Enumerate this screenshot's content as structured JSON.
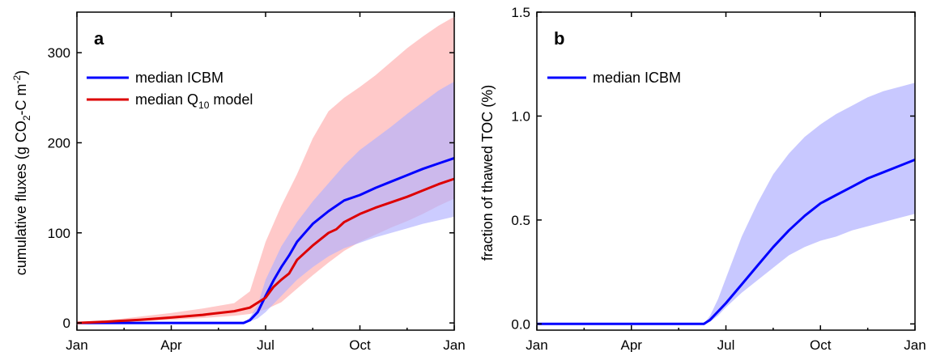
{
  "chart_data": [
    {
      "panel": "a",
      "type": "line",
      "x_ticks": [
        "Jan",
        "Apr",
        "Jul",
        "Oct",
        "Jan"
      ],
      "x_tick_positions": [
        0,
        3,
        6,
        9,
        12
      ],
      "xlim": [
        0,
        12
      ],
      "ylim": [
        -8,
        345
      ],
      "y_ticks": [
        0,
        100,
        200,
        300
      ],
      "ylabel": {
        "main": "cumulative fluxes (g CO",
        "sub": "2",
        "mid": "-C m",
        "sup": "-2",
        "end": ")"
      },
      "legend": [
        {
          "text": "median ICBM",
          "color": "#0000ff"
        },
        {
          "text_main": "median Q",
          "text_sub": "10",
          "text_end": " model",
          "color": "#dd0000"
        }
      ],
      "series": [
        {
          "name": "median ICBM",
          "color": "#0000ff",
          "x": [
            0,
            5.3,
            5.5,
            5.75,
            6.0,
            6.25,
            6.5,
            6.75,
            7.0,
            7.5,
            8.0,
            8.5,
            9.0,
            9.5,
            10,
            10.5,
            11,
            11.5,
            12
          ],
          "y": [
            0,
            0,
            3,
            12,
            30,
            47,
            62,
            75,
            90,
            110,
            124,
            136,
            142,
            150,
            157,
            164,
            171,
            177,
            183
          ]
        },
        {
          "name": "median Q10 model",
          "color": "#dd0000",
          "x": [
            0,
            1,
            2,
            3,
            4,
            5,
            5.5,
            6.0,
            6.25,
            6.5,
            6.75,
            7.0,
            7.5,
            8.0,
            8.25,
            8.5,
            9.0,
            9.5,
            10,
            10.5,
            11,
            11.5,
            12
          ],
          "y": [
            0,
            1.5,
            3.5,
            6,
            9,
            13,
            17,
            28,
            40,
            48,
            55,
            70,
            86,
            100,
            104,
            112,
            121,
            128,
            134,
            140,
            147,
            154,
            160
          ]
        }
      ],
      "bands": [
        {
          "series": "median Q10 model",
          "fill": "#ffb0b0",
          "opacity": 0.68,
          "x": [
            0,
            1,
            2,
            3,
            4,
            5,
            5.5,
            6,
            6.5,
            7,
            7.5,
            8,
            8.5,
            9,
            9.5,
            10,
            10.5,
            11,
            11.5,
            12
          ],
          "lower": [
            0,
            0.8,
            2,
            3.5,
            5.5,
            8,
            10,
            15,
            23,
            38,
            53,
            67,
            80,
            90,
            98,
            106,
            113,
            121,
            130,
            138
          ],
          "upper": [
            0,
            3,
            7,
            11,
            16,
            22,
            35,
            90,
            130,
            165,
            205,
            235,
            250,
            262,
            275,
            290,
            305,
            318,
            330,
            340
          ]
        },
        {
          "series": "median ICBM",
          "fill": "#b0b0ff",
          "opacity": 0.65,
          "x": [
            0,
            5.3,
            5.5,
            5.75,
            6,
            6.5,
            7,
            7.5,
            8,
            8.5,
            9,
            9.5,
            10,
            10.5,
            11,
            11.5,
            12
          ],
          "lower": [
            0,
            0,
            1.5,
            5,
            12,
            30,
            48,
            62,
            74,
            83,
            89,
            95,
            100,
            105,
            110,
            114,
            118
          ],
          "upper": [
            0,
            0,
            6,
            20,
            48,
            85,
            112,
            135,
            155,
            175,
            192,
            205,
            218,
            232,
            245,
            258,
            268
          ]
        }
      ]
    },
    {
      "panel": "b",
      "type": "line",
      "x_ticks": [
        "Jan",
        "Apr",
        "Jul",
        "Oct",
        "Jan"
      ],
      "x_tick_positions": [
        0,
        3,
        6,
        9,
        12
      ],
      "xlim": [
        0,
        12
      ],
      "ylim": [
        -0.03,
        1.5
      ],
      "y_ticks": [
        "0.0",
        "0.5",
        "1.0",
        "1.5"
      ],
      "y_tick_values": [
        0,
        0.5,
        1.0,
        1.5
      ],
      "ylabel": "fraction of thawed TOC (%)",
      "legend": [
        {
          "text": "median ICBM",
          "color": "#0000ff"
        }
      ],
      "series": [
        {
          "name": "median ICBM",
          "color": "#0000ff",
          "x": [
            0,
            5.3,
            5.5,
            5.75,
            6,
            6.5,
            7,
            7.5,
            8,
            8.5,
            9,
            9.5,
            10,
            10.5,
            11,
            11.5,
            12
          ],
          "y": [
            0,
            0,
            0.02,
            0.06,
            0.1,
            0.19,
            0.28,
            0.37,
            0.45,
            0.52,
            0.58,
            0.62,
            0.66,
            0.7,
            0.73,
            0.76,
            0.79
          ]
        }
      ],
      "bands": [
        {
          "series": "median ICBM",
          "fill": "#b0b0ff",
          "opacity": 0.7,
          "x": [
            0,
            5.3,
            5.5,
            5.75,
            6,
            6.5,
            7,
            7.5,
            8,
            8.5,
            9,
            9.5,
            10,
            10.5,
            11,
            11.5,
            12
          ],
          "lower": [
            0,
            0,
            0.01,
            0.04,
            0.08,
            0.15,
            0.21,
            0.27,
            0.33,
            0.37,
            0.4,
            0.42,
            0.45,
            0.47,
            0.49,
            0.51,
            0.53
          ],
          "upper": [
            0,
            0,
            0.04,
            0.12,
            0.22,
            0.42,
            0.58,
            0.72,
            0.82,
            0.9,
            0.96,
            1.01,
            1.05,
            1.09,
            1.12,
            1.14,
            1.16
          ]
        }
      ]
    }
  ]
}
